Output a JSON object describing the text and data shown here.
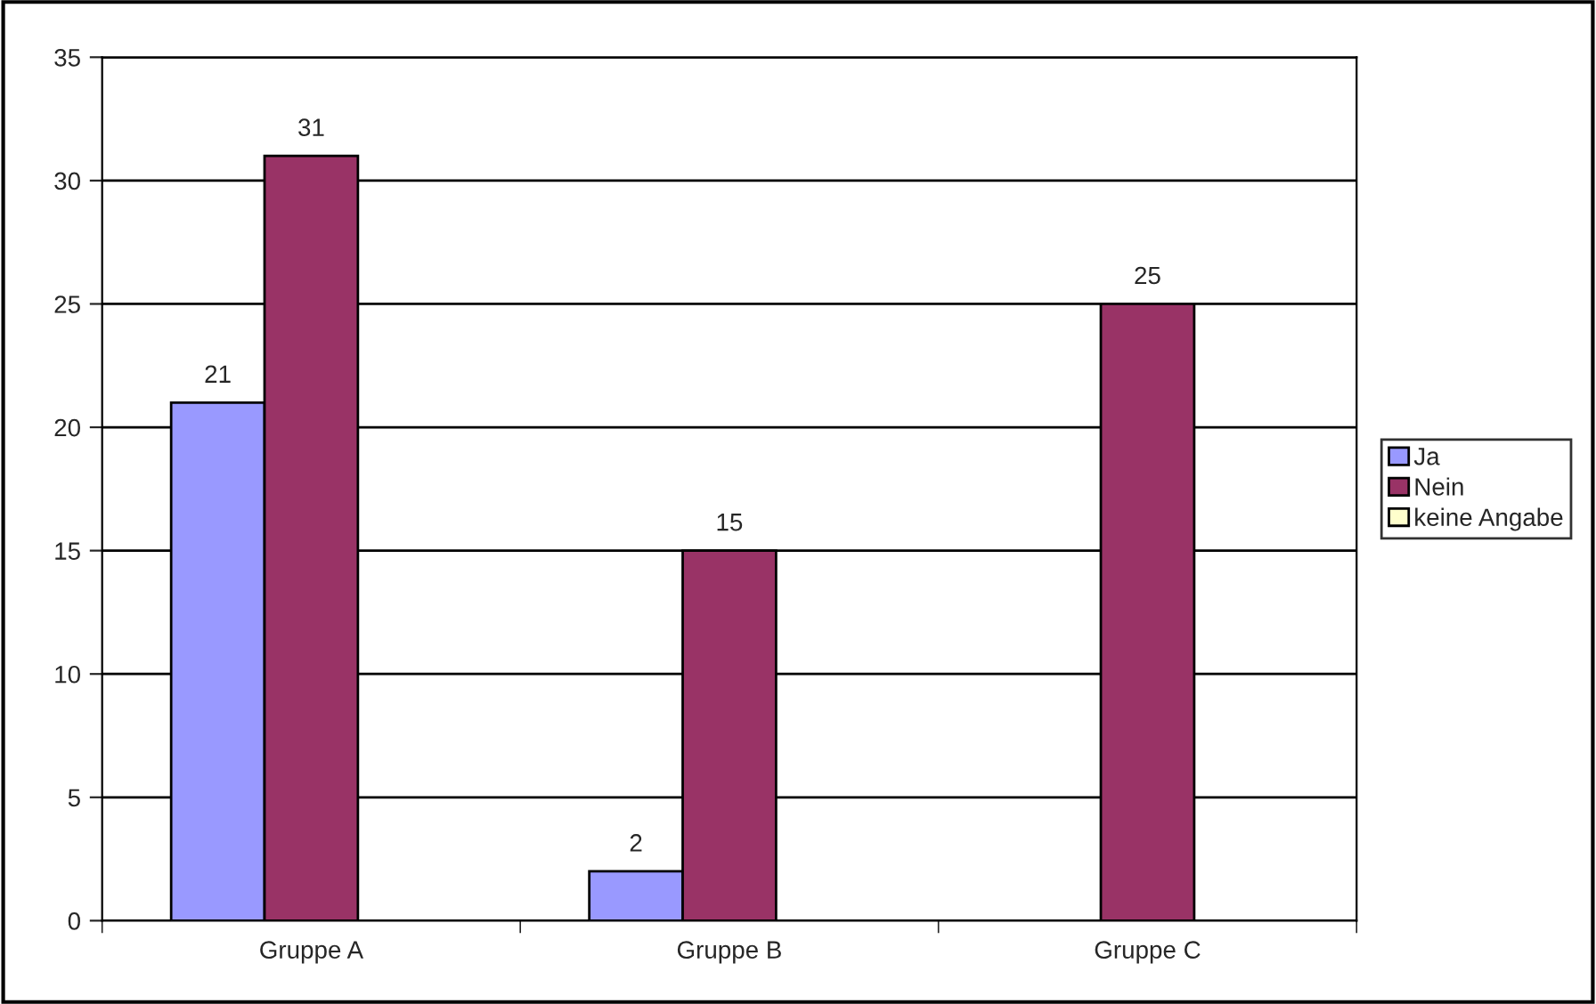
{
  "chart_data": {
    "type": "bar",
    "categories": [
      "Gruppe A",
      "Gruppe B",
      "Gruppe C"
    ],
    "series": [
      {
        "name": "Ja",
        "color": "#9999ff",
        "values": [
          21,
          2,
          null
        ]
      },
      {
        "name": "Nein",
        "color": "#993366",
        "values": [
          31,
          15,
          25
        ]
      },
      {
        "name": "keine Angabe",
        "color": "#ffffcc",
        "values": [
          null,
          null,
          null
        ]
      }
    ],
    "ylim": [
      0,
      35
    ],
    "yticks": [
      0,
      5,
      10,
      15,
      20,
      25,
      30,
      35
    ],
    "grid": "y",
    "legend": "right",
    "data_labels": true
  }
}
